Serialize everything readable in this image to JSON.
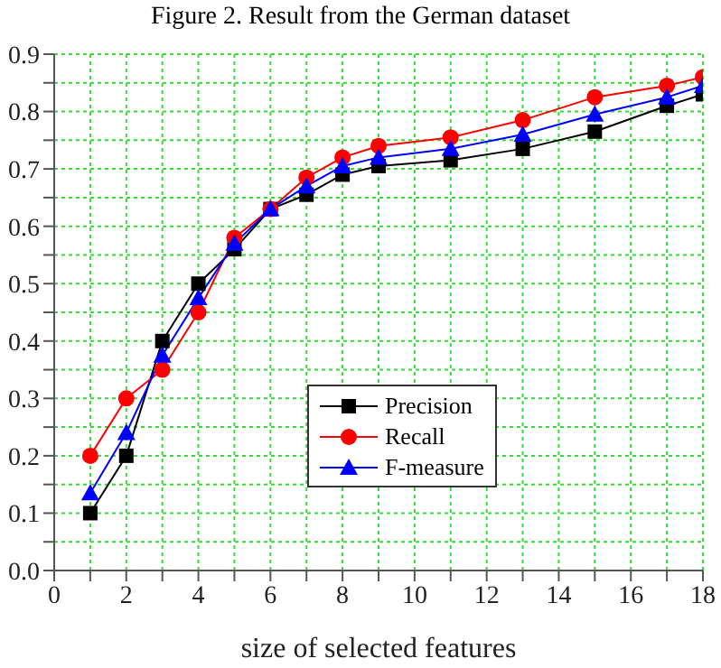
{
  "chart_data": {
    "type": "line",
    "title": "Figure 2. Result from the German dataset",
    "xlabel": "size of selected features",
    "x": [
      1,
      2,
      3,
      4,
      5,
      6,
      7,
      8,
      9,
      11,
      13,
      15,
      17,
      18
    ],
    "series": [
      {
        "name": "Precision",
        "color": "#000000",
        "marker": "square",
        "values": [
          0.1,
          0.2,
          0.4,
          0.5,
          0.56,
          0.63,
          0.655,
          0.69,
          0.705,
          0.715,
          0.735,
          0.765,
          0.81,
          0.83
        ]
      },
      {
        "name": "Recall",
        "color": "#ff0000",
        "marker": "circle",
        "values": [
          0.2,
          0.3,
          0.35,
          0.45,
          0.58,
          0.63,
          0.685,
          0.72,
          0.74,
          0.755,
          0.785,
          0.825,
          0.845,
          0.86
        ]
      },
      {
        "name": "F-measure",
        "color": "#0000ff",
        "marker": "triangle",
        "values": [
          0.135,
          0.24,
          0.375,
          0.475,
          0.57,
          0.63,
          0.67,
          0.705,
          0.72,
          0.735,
          0.76,
          0.795,
          0.825,
          0.845
        ]
      }
    ],
    "xlim": [
      0,
      18
    ],
    "xticks": [
      0,
      {
        "value": 1,
        "label": null
      },
      2,
      {
        "value": 3,
        "label": null
      },
      4,
      {
        "value": 5,
        "label": null
      },
      6,
      {
        "value": 7,
        "label": null
      },
      8,
      {
        "value": 9,
        "label": null
      },
      10,
      {
        "value": 11,
        "label": null
      },
      12,
      {
        "value": 13,
        "label": null
      },
      14,
      {
        "value": 15,
        "label": null
      },
      16,
      {
        "value": 17,
        "label": null
      },
      18
    ],
    "ylim": [
      0,
      0.9
    ],
    "yticks": [
      {
        "value": 0,
        "label": "0.0"
      },
      {
        "value": 0.05,
        "label": null
      },
      0.1,
      {
        "value": 0.15,
        "label": null
      },
      0.2,
      {
        "value": 0.25,
        "label": null
      },
      0.3,
      {
        "value": 0.35,
        "label": null
      },
      0.4,
      {
        "value": 0.45,
        "label": null
      },
      0.5,
      {
        "value": 0.55,
        "label": null
      },
      0.6,
      {
        "value": 0.65,
        "label": null
      },
      0.7,
      {
        "value": 0.75,
        "label": null
      },
      0.8,
      {
        "value": 0.85,
        "label": null
      },
      0.9
    ],
    "grid": true,
    "legend": "center",
    "line_style": "solid"
  }
}
